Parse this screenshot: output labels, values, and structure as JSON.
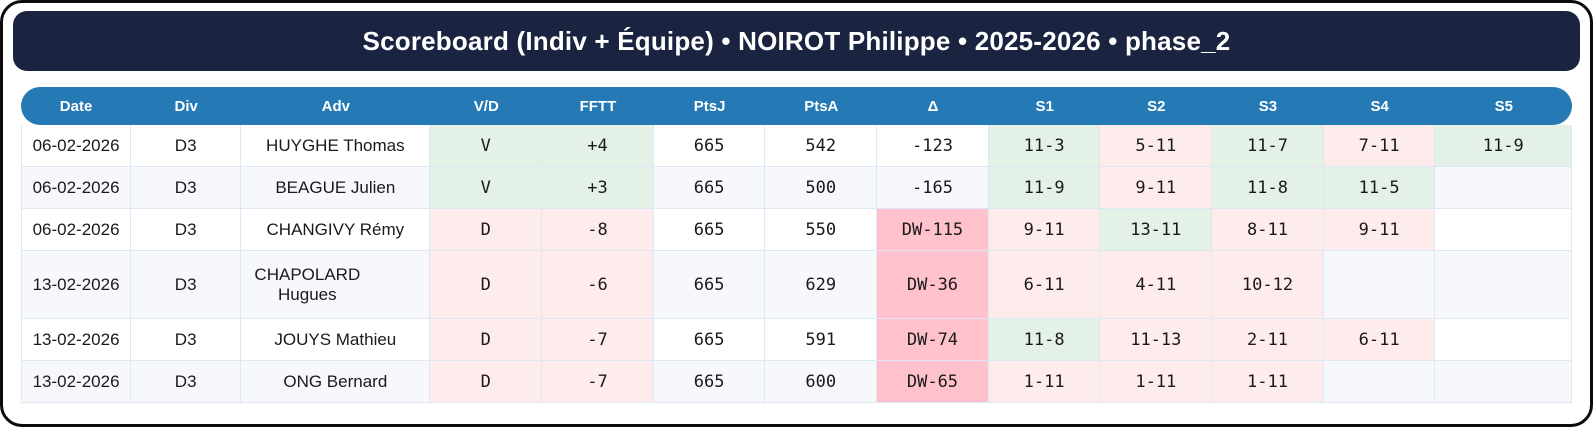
{
  "title": "Scoreboard (Indiv + Équipe) • NOIROT Philippe • 2025-2026 • phase_2",
  "colors": {
    "outer_border": "#0b0b0b",
    "title_bar_bg": "#1a2440",
    "header_blue": "#2579b5",
    "grid_line": "#dde8f3",
    "row_alt_bg": "#f6f8fc",
    "win_bg": "#e4f1e6",
    "win_text": "#2e7d32",
    "loss_bg": "#fdeceb",
    "loss_text": "#b33939",
    "dw_bg": "#ffc1cc",
    "plain_text": "#1a1a1a"
  },
  "table": {
    "columns": [
      "Date",
      "Div",
      "Adv",
      "V/D",
      "FFTT",
      "PtsJ",
      "PtsA",
      "Δ",
      "S1",
      "S2",
      "S3",
      "S4",
      "S5"
    ],
    "rows": [
      {
        "date": "06-02-2026",
        "div": "D3",
        "adv": "HUYGHE Thomas",
        "vd": {
          "text": "V",
          "result": "win"
        },
        "fftt": {
          "text": "+4",
          "result": "win"
        },
        "ptsj": "665",
        "ptsa": "542",
        "delta": {
          "text": "-123",
          "style": "plain"
        },
        "sets": [
          {
            "text": "11-3",
            "result": "win"
          },
          {
            "text": "5-11",
            "result": "loss"
          },
          {
            "text": "11-7",
            "result": "win"
          },
          {
            "text": "7-11",
            "result": "loss"
          },
          {
            "text": "11-9",
            "result": "win"
          }
        ]
      },
      {
        "date": "06-02-2026",
        "div": "D3",
        "adv": "BEAGUE Julien",
        "vd": {
          "text": "V",
          "result": "win"
        },
        "fftt": {
          "text": "+3",
          "result": "win"
        },
        "ptsj": "665",
        "ptsa": "500",
        "delta": {
          "text": "-165",
          "style": "plain"
        },
        "sets": [
          {
            "text": "11-9",
            "result": "win"
          },
          {
            "text": "9-11",
            "result": "loss"
          },
          {
            "text": "11-8",
            "result": "win"
          },
          {
            "text": "11-5",
            "result": "win"
          },
          {
            "text": "",
            "result": ""
          }
        ]
      },
      {
        "date": "06-02-2026",
        "div": "D3",
        "adv": "CHANGIVY Rémy",
        "vd": {
          "text": "D",
          "result": "loss"
        },
        "fftt": {
          "text": "-8",
          "result": "loss"
        },
        "ptsj": "665",
        "ptsa": "550",
        "delta": {
          "text": "DW-115",
          "style": "dw"
        },
        "sets": [
          {
            "text": "9-11",
            "result": "loss"
          },
          {
            "text": "13-11",
            "result": "win"
          },
          {
            "text": "8-11",
            "result": "loss"
          },
          {
            "text": "9-11",
            "result": "loss"
          },
          {
            "text": "",
            "result": ""
          }
        ]
      },
      {
        "date": "13-02-2026",
        "div": "D3",
        "adv": "CHAPOLARD Hugues",
        "wrap": true,
        "tall": true,
        "vd": {
          "text": "D",
          "result": "loss"
        },
        "fftt": {
          "text": "-6",
          "result": "loss"
        },
        "ptsj": "665",
        "ptsa": "629",
        "delta": {
          "text": "DW-36",
          "style": "dw"
        },
        "sets": [
          {
            "text": "6-11",
            "result": "loss"
          },
          {
            "text": "4-11",
            "result": "loss"
          },
          {
            "text": "10-12",
            "result": "loss"
          },
          {
            "text": "",
            "result": ""
          },
          {
            "text": "",
            "result": ""
          }
        ]
      },
      {
        "date": "13-02-2026",
        "div": "D3",
        "adv": "JOUYS Mathieu",
        "vd": {
          "text": "D",
          "result": "loss"
        },
        "fftt": {
          "text": "-7",
          "result": "loss"
        },
        "ptsj": "665",
        "ptsa": "591",
        "delta": {
          "text": "DW-74",
          "style": "dw"
        },
        "sets": [
          {
            "text": "11-8",
            "result": "win"
          },
          {
            "text": "11-13",
            "result": "loss"
          },
          {
            "text": "2-11",
            "result": "loss"
          },
          {
            "text": "6-11",
            "result": "loss"
          },
          {
            "text": "",
            "result": ""
          }
        ]
      },
      {
        "date": "13-02-2026",
        "div": "D3",
        "adv": "ONG Bernard",
        "vd": {
          "text": "D",
          "result": "loss"
        },
        "fftt": {
          "text": "-7",
          "result": "loss"
        },
        "ptsj": "665",
        "ptsa": "600",
        "delta": {
          "text": "DW-65",
          "style": "dw"
        },
        "sets": [
          {
            "text": "1-11",
            "result": "loss"
          },
          {
            "text": "1-11",
            "result": "loss"
          },
          {
            "text": "1-11",
            "result": "loss"
          },
          {
            "text": "",
            "result": ""
          },
          {
            "text": "",
            "result": ""
          }
        ]
      }
    ]
  }
}
